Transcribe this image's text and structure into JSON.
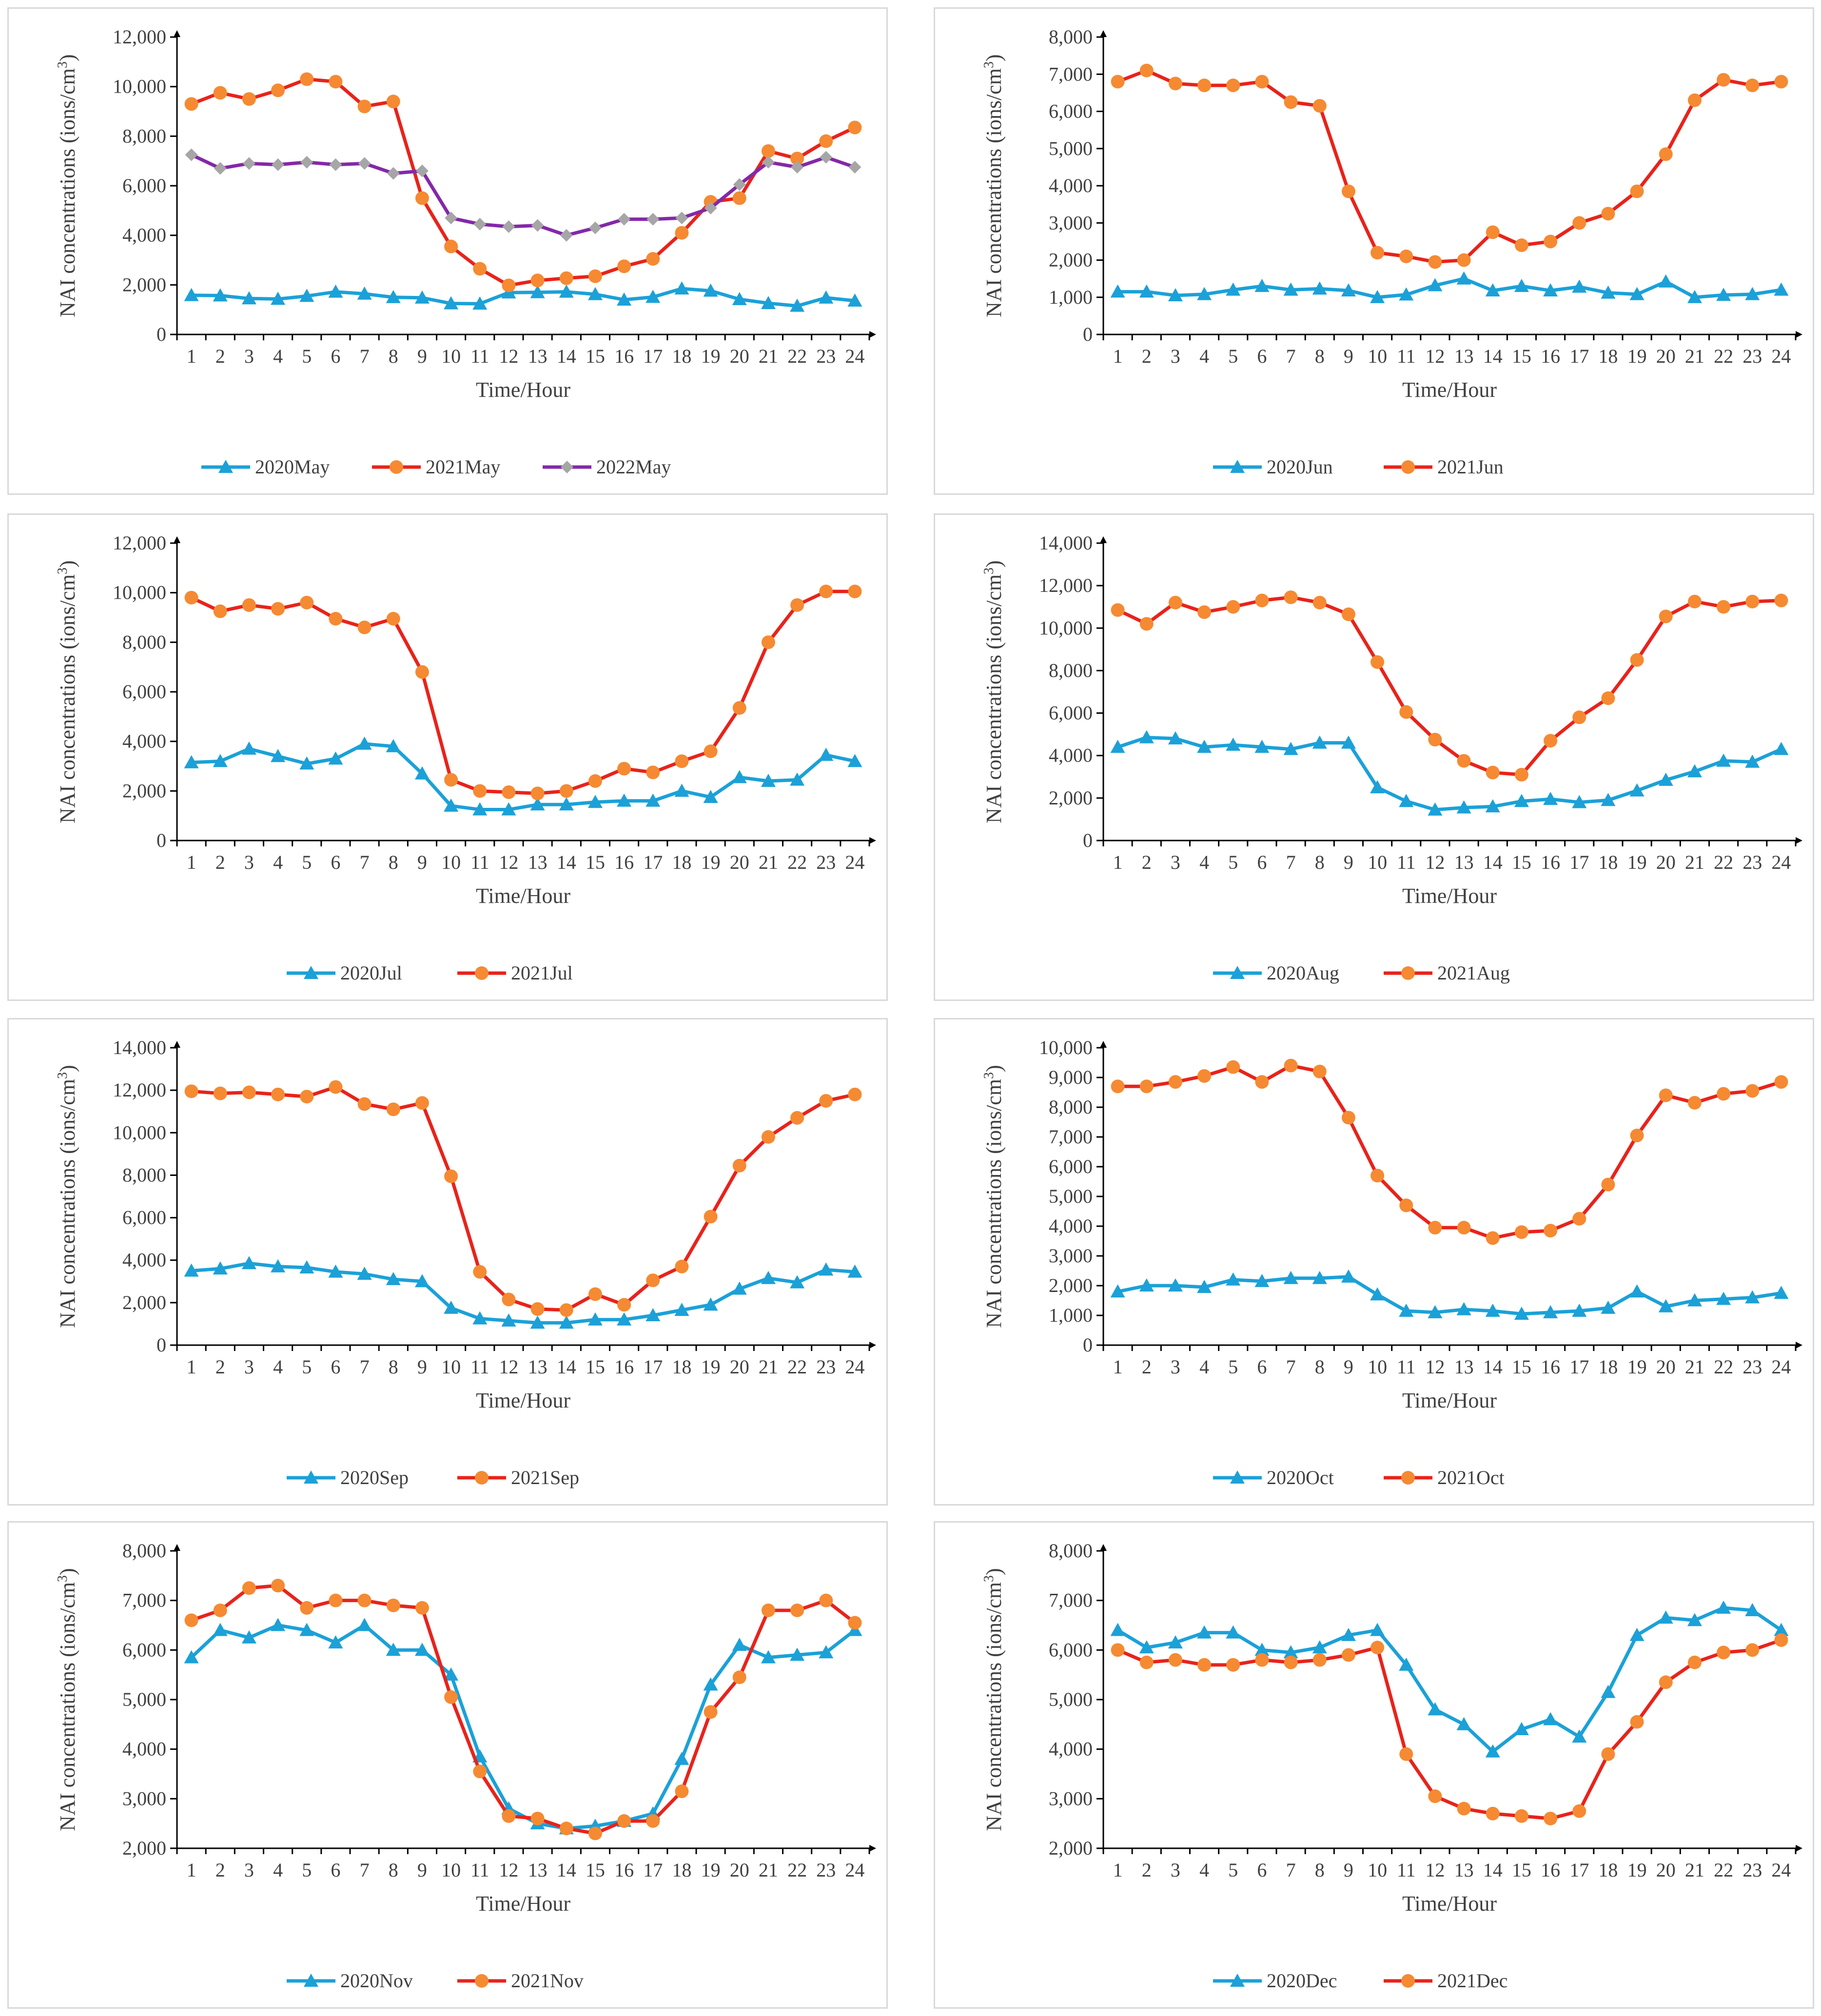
{
  "colors": {
    "blue": "#1ba1d8",
    "red": "#e8231b",
    "orange": "#f58a32",
    "purple": "#8428a8",
    "gray": "#a6a6a6",
    "axis": "#000000"
  },
  "chart_data": [
    {
      "type": "line",
      "xlabel": "Time/Hour",
      "ylabel_main": "NAI concentrations (ions/cm",
      "ylabel_sup": "3",
      "ylabel_end": ")",
      "categories": [
        "1",
        "2",
        "3",
        "4",
        "5",
        "6",
        "7",
        "8",
        "9",
        "10",
        "11",
        "12",
        "13",
        "14",
        "15",
        "16",
        "17",
        "18",
        "19",
        "20",
        "21",
        "22",
        "23",
        "24"
      ],
      "ylim": [
        0,
        12000
      ],
      "yticks": [
        0,
        2000,
        4000,
        6000,
        8000,
        10000,
        12000
      ],
      "ytick_labels": [
        "0",
        "2,000",
        "4,000",
        "6,000",
        "8,000",
        "10,000",
        "12,000"
      ],
      "series": [
        {
          "name": "2020May",
          "marker": "triangle",
          "line_color": "#1ba1d8",
          "marker_color": "#1ba1d8",
          "values": [
            1580,
            1570,
            1450,
            1430,
            1550,
            1720,
            1640,
            1500,
            1480,
            1250,
            1240,
            1690,
            1700,
            1720,
            1620,
            1400,
            1510,
            1850,
            1760,
            1420,
            1260,
            1150,
            1480,
            1360
          ]
        },
        {
          "name": "2021May",
          "marker": "circle",
          "line_color": "#e8231b",
          "marker_color": "#f58a32",
          "values": [
            9300,
            9750,
            9500,
            9850,
            10300,
            10200,
            9200,
            9400,
            5500,
            3550,
            2650,
            1980,
            2180,
            2270,
            2350,
            2750,
            3050,
            4100,
            5350,
            5500,
            7400,
            7100,
            7800,
            8350
          ]
        },
        {
          "name": "2022May",
          "marker": "diamond",
          "line_color": "#8428a8",
          "marker_color": "#a6a6a6",
          "values": [
            7250,
            6700,
            6900,
            6850,
            6950,
            6850,
            6900,
            6500,
            6600,
            4700,
            4450,
            4350,
            4400,
            4000,
            4300,
            4650,
            4650,
            4700,
            5100,
            6050,
            6950,
            6750,
            7150,
            6750
          ]
        }
      ]
    },
    {
      "type": "line",
      "xlabel": "Time/Hour",
      "ylabel_main": "NAI concentrations (ions/cm",
      "ylabel_sup": "3",
      "ylabel_end": ")",
      "categories": [
        "1",
        "2",
        "3",
        "4",
        "5",
        "6",
        "7",
        "8",
        "9",
        "10",
        "11",
        "12",
        "13",
        "14",
        "15",
        "16",
        "17",
        "18",
        "19",
        "20",
        "21",
        "22",
        "23",
        "24"
      ],
      "ylim": [
        0,
        8000
      ],
      "yticks": [
        0,
        1000,
        2000,
        3000,
        4000,
        5000,
        6000,
        7000,
        8000
      ],
      "ytick_labels": [
        "0",
        "1,000",
        "2,000",
        "3,000",
        "4,000",
        "5,000",
        "6,000",
        "7,000",
        "8,000"
      ],
      "series": [
        {
          "name": "2020Jun",
          "marker": "triangle",
          "line_color": "#1ba1d8",
          "marker_color": "#1ba1d8",
          "values": [
            1150,
            1150,
            1050,
            1080,
            1200,
            1300,
            1200,
            1230,
            1180,
            1000,
            1070,
            1320,
            1500,
            1180,
            1300,
            1180,
            1280,
            1120,
            1080,
            1420,
            1000,
            1060,
            1080,
            1200
          ]
        },
        {
          "name": "2021Jun",
          "marker": "circle",
          "line_color": "#e8231b",
          "marker_color": "#f58a32",
          "values": [
            6800,
            7100,
            6750,
            6700,
            6700,
            6800,
            6250,
            6150,
            3850,
            2200,
            2100,
            1950,
            2000,
            2750,
            2400,
            2500,
            3000,
            3250,
            3850,
            4850,
            6300,
            6850,
            6700,
            6800
          ]
        }
      ]
    },
    {
      "type": "line",
      "xlabel": "Time/Hour",
      "ylabel_main": "NAI concentrations (ions/cm",
      "ylabel_sup": "3",
      "ylabel_end": ")",
      "categories": [
        "1",
        "2",
        "3",
        "4",
        "5",
        "6",
        "7",
        "8",
        "9",
        "10",
        "11",
        "12",
        "13",
        "14",
        "15",
        "16",
        "17",
        "18",
        "19",
        "20",
        "21",
        "22",
        "23",
        "24"
      ],
      "ylim": [
        0,
        12000
      ],
      "yticks": [
        0,
        2000,
        4000,
        6000,
        8000,
        10000,
        12000
      ],
      "ytick_labels": [
        "0",
        "2,000",
        "4,000",
        "6,000",
        "8,000",
        "10,000",
        "12,000"
      ],
      "series": [
        {
          "name": "2020Jul",
          "marker": "triangle",
          "line_color": "#1ba1d8",
          "marker_color": "#1ba1d8",
          "values": [
            3150,
            3200,
            3700,
            3400,
            3100,
            3300,
            3900,
            3800,
            2700,
            1400,
            1250,
            1250,
            1450,
            1450,
            1550,
            1600,
            1600,
            2000,
            1750,
            2550,
            2400,
            2450,
            3450,
            3200
          ]
        },
        {
          "name": "2021Jul",
          "marker": "circle",
          "line_color": "#e8231b",
          "marker_color": "#f58a32",
          "values": [
            9800,
            9250,
            9500,
            9350,
            9600,
            8950,
            8600,
            8950,
            6800,
            2450,
            2000,
            1950,
            1900,
            2000,
            2400,
            2900,
            2750,
            3200,
            3600,
            5350,
            8000,
            9500,
            10050,
            10050
          ]
        }
      ]
    },
    {
      "type": "line",
      "xlabel": "Time/Hour",
      "ylabel_main": "NAI concentrations (ions/cm",
      "ylabel_sup": "3",
      "ylabel_end": ")",
      "categories": [
        "1",
        "2",
        "3",
        "4",
        "5",
        "6",
        "7",
        "8",
        "9",
        "10",
        "11",
        "12",
        "13",
        "14",
        "15",
        "16",
        "17",
        "18",
        "19",
        "20",
        "21",
        "22",
        "23",
        "24"
      ],
      "ylim": [
        0,
        14000
      ],
      "yticks": [
        0,
        2000,
        4000,
        6000,
        8000,
        10000,
        12000,
        14000
      ],
      "ytick_labels": [
        "0",
        "2,000",
        "4,000",
        "6,000",
        "8,000",
        "10,000",
        "12,000",
        "14,000"
      ],
      "series": [
        {
          "name": "2020Aug",
          "marker": "triangle",
          "line_color": "#1ba1d8",
          "marker_color": "#1ba1d8",
          "values": [
            4400,
            4850,
            4800,
            4400,
            4500,
            4400,
            4300,
            4600,
            4600,
            2500,
            1850,
            1450,
            1550,
            1600,
            1850,
            1950,
            1800,
            1900,
            2350,
            2850,
            3250,
            3750,
            3700,
            4300
          ]
        },
        {
          "name": "2021Aug",
          "marker": "circle",
          "line_color": "#e8231b",
          "marker_color": "#f58a32",
          "values": [
            10850,
            10200,
            11200,
            10750,
            11000,
            11300,
            11450,
            11200,
            10650,
            8400,
            6050,
            4750,
            3750,
            3200,
            3100,
            4700,
            5800,
            6700,
            8500,
            10550,
            11250,
            11000,
            11250,
            11300
          ]
        }
      ]
    },
    {
      "type": "line",
      "xlabel": "Time/Hour",
      "ylabel_main": "NAI concentrations (ions/cm",
      "ylabel_sup": "3",
      "ylabel_end": ")",
      "categories": [
        "1",
        "2",
        "3",
        "4",
        "5",
        "6",
        "7",
        "8",
        "9",
        "10",
        "11",
        "12",
        "13",
        "14",
        "15",
        "16",
        "17",
        "18",
        "19",
        "20",
        "21",
        "22",
        "23",
        "24"
      ],
      "ylim": [
        0,
        14000
      ],
      "yticks": [
        0,
        2000,
        4000,
        6000,
        8000,
        10000,
        12000,
        14000
      ],
      "ytick_labels": [
        "0",
        "2,000",
        "4,000",
        "6,000",
        "8,000",
        "10,000",
        "12,000",
        "14,000"
      ],
      "series": [
        {
          "name": "2020Sep",
          "marker": "triangle",
          "line_color": "#1ba1d8",
          "marker_color": "#1ba1d8",
          "values": [
            3500,
            3600,
            3850,
            3700,
            3650,
            3450,
            3350,
            3100,
            3000,
            1750,
            1250,
            1150,
            1050,
            1050,
            1200,
            1200,
            1400,
            1650,
            1900,
            2650,
            3150,
            2950,
            3550,
            3450
          ]
        },
        {
          "name": "2021Sep",
          "marker": "circle",
          "line_color": "#e8231b",
          "marker_color": "#f58a32",
          "values": [
            11950,
            11850,
            11900,
            11800,
            11700,
            12150,
            11350,
            11100,
            11400,
            7950,
            3450,
            2150,
            1700,
            1650,
            2400,
            1900,
            3050,
            3700,
            6050,
            8450,
            9800,
            10700,
            11500,
            11800
          ]
        }
      ]
    },
    {
      "type": "line",
      "xlabel": "Time/Hour",
      "ylabel_main": "NAI concentrations (ions/cm",
      "ylabel_sup": "3",
      "ylabel_end": ")",
      "categories": [
        "1",
        "2",
        "3",
        "4",
        "5",
        "6",
        "7",
        "8",
        "9",
        "10",
        "11",
        "12",
        "13",
        "14",
        "15",
        "16",
        "17",
        "18",
        "19",
        "20",
        "21",
        "22",
        "23",
        "24"
      ],
      "ylim": [
        0,
        10000
      ],
      "yticks": [
        0,
        1000,
        2000,
        3000,
        4000,
        5000,
        6000,
        7000,
        8000,
        9000,
        10000
      ],
      "ytick_labels": [
        "0",
        "1,000",
        "2,000",
        "3,000",
        "4,000",
        "5,000",
        "6,000",
        "7,000",
        "8,000",
        "9,000",
        "10,000"
      ],
      "series": [
        {
          "name": "2020Oct",
          "marker": "triangle",
          "line_color": "#1ba1d8",
          "marker_color": "#1ba1d8",
          "values": [
            1800,
            2000,
            2000,
            1950,
            2200,
            2150,
            2250,
            2250,
            2300,
            1700,
            1150,
            1100,
            1200,
            1150,
            1050,
            1100,
            1150,
            1250,
            1800,
            1300,
            1500,
            1550,
            1600,
            1750
          ]
        },
        {
          "name": "2021Oct",
          "marker": "circle",
          "line_color": "#e8231b",
          "marker_color": "#f58a32",
          "values": [
            8700,
            8700,
            8850,
            9050,
            9350,
            8850,
            9400,
            9200,
            7650,
            5700,
            4700,
            3950,
            3950,
            3600,
            3800,
            3850,
            4250,
            5400,
            7050,
            8400,
            8150,
            8450,
            8550,
            8850
          ]
        }
      ]
    },
    {
      "type": "line",
      "xlabel": "Time/Hour",
      "ylabel_main": "NAI concentrations (ions/cm",
      "ylabel_sup": "3",
      "ylabel_end": ")",
      "categories": [
        "1",
        "2",
        "3",
        "4",
        "5",
        "6",
        "7",
        "8",
        "9",
        "10",
        "11",
        "12",
        "13",
        "14",
        "15",
        "16",
        "17",
        "18",
        "19",
        "20",
        "21",
        "22",
        "23",
        "24"
      ],
      "ylim": [
        2000,
        8000
      ],
      "yticks": [
        2000,
        3000,
        4000,
        5000,
        6000,
        7000,
        8000
      ],
      "ytick_labels": [
        "2,000",
        "3,000",
        "4,000",
        "5,000",
        "6,000",
        "7,000",
        "8,000"
      ],
      "series": [
        {
          "name": "2020Nov",
          "marker": "triangle",
          "line_color": "#1ba1d8",
          "marker_color": "#1ba1d8",
          "values": [
            5850,
            6400,
            6250,
            6500,
            6400,
            6150,
            6500,
            6000,
            6000,
            5500,
            3850,
            2800,
            2500,
            2400,
            2450,
            2550,
            2700,
            3800,
            5300,
            6100,
            5850,
            5900,
            5950,
            6400
          ]
        },
        {
          "name": "2021Nov",
          "marker": "circle",
          "line_color": "#e8231b",
          "marker_color": "#f58a32",
          "values": [
            6600,
            6800,
            7250,
            7300,
            6850,
            7000,
            7000,
            6900,
            6850,
            5050,
            3550,
            2650,
            2600,
            2400,
            2300,
            2550,
            2550,
            3150,
            4750,
            5450,
            6800,
            6800,
            7000,
            6550
          ]
        }
      ]
    },
    {
      "type": "line",
      "xlabel": "Time/Hour",
      "ylabel_main": "NAI concentrations (ions/cm",
      "ylabel_sup": "3",
      "ylabel_end": ")",
      "categories": [
        "1",
        "2",
        "3",
        "4",
        "5",
        "6",
        "7",
        "8",
        "9",
        "10",
        "11",
        "12",
        "13",
        "14",
        "15",
        "16",
        "17",
        "18",
        "19",
        "20",
        "21",
        "22",
        "23",
        "24"
      ],
      "ylim": [
        2000,
        8000
      ],
      "yticks": [
        2000,
        3000,
        4000,
        5000,
        6000,
        7000,
        8000
      ],
      "ytick_labels": [
        "2,000",
        "3,000",
        "4,000",
        "5,000",
        "6,000",
        "7,000",
        "8,000"
      ],
      "series": [
        {
          "name": "2020Dec",
          "marker": "triangle",
          "line_color": "#1ba1d8",
          "marker_color": "#1ba1d8",
          "values": [
            6400,
            6050,
            6150,
            6350,
            6350,
            6000,
            5950,
            6050,
            6300,
            6400,
            5700,
            4800,
            4500,
            3950,
            4400,
            4600,
            4250,
            5150,
            6300,
            6650,
            6600,
            6850,
            6800,
            6400
          ]
        },
        {
          "name": "2021Dec",
          "marker": "circle",
          "line_color": "#e8231b",
          "marker_color": "#f58a32",
          "values": [
            6000,
            5750,
            5800,
            5700,
            5700,
            5800,
            5750,
            5800,
            5900,
            6050,
            3900,
            3050,
            2800,
            2700,
            2650,
            2600,
            2750,
            3900,
            4550,
            5350,
            5750,
            5950,
            6000,
            6200
          ]
        }
      ]
    }
  ]
}
